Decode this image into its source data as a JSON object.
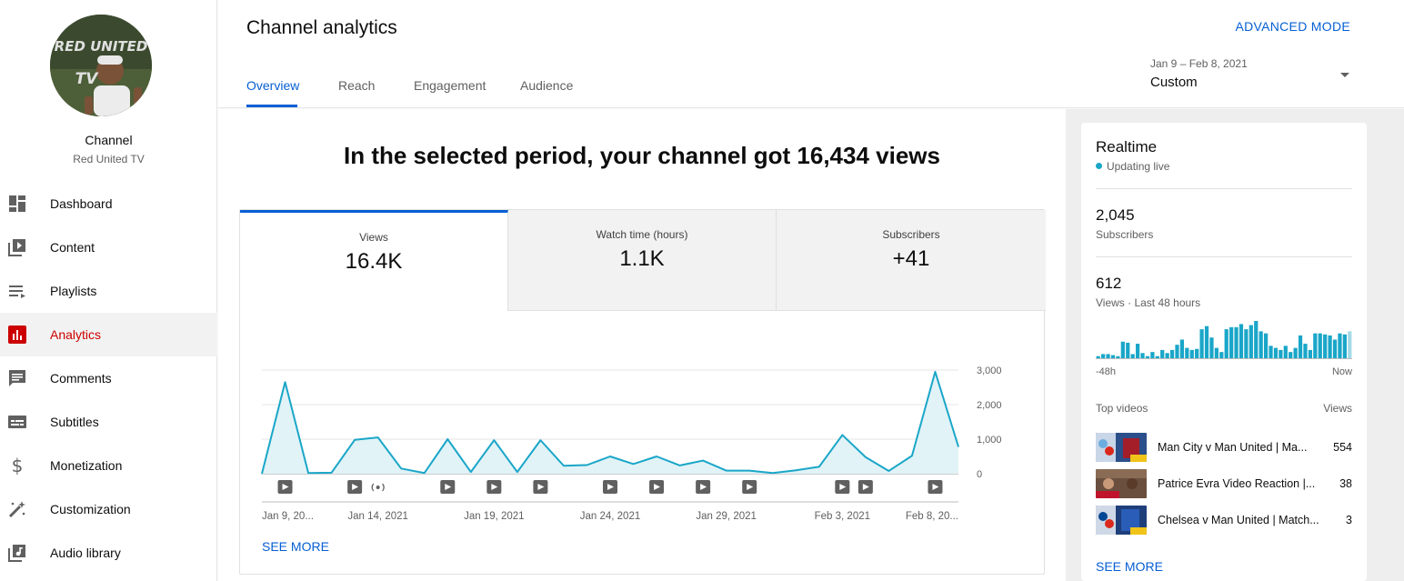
{
  "colors": {
    "accent": "#065fd4",
    "active_nav": "#cc0000",
    "chart_line": "#1aa6c8",
    "chart_fill": "#e1f3f7"
  },
  "sidebar": {
    "avatar_text": "RED UNITED TV",
    "channel_label": "Channel",
    "channel_name": "Red United TV",
    "items": [
      {
        "label": "Dashboard",
        "icon": "dashboard-icon"
      },
      {
        "label": "Content",
        "icon": "video-library-icon"
      },
      {
        "label": "Playlists",
        "icon": "playlist-icon"
      },
      {
        "label": "Analytics",
        "icon": "analytics-icon",
        "active": true
      },
      {
        "label": "Comments",
        "icon": "comments-icon"
      },
      {
        "label": "Subtitles",
        "icon": "subtitles-icon"
      },
      {
        "label": "Monetization",
        "icon": "dollar-icon"
      },
      {
        "label": "Customization",
        "icon": "magic-wand-icon"
      },
      {
        "label": "Audio library",
        "icon": "audio-library-icon"
      }
    ]
  },
  "header": {
    "title": "Channel analytics",
    "advanced_mode": "ADVANCED MODE",
    "tabs": [
      "Overview",
      "Reach",
      "Engagement",
      "Audience"
    ],
    "active_tab": "Overview",
    "date_range": "Jan 9 – Feb 8, 2021",
    "date_preset": "Custom"
  },
  "main": {
    "headline": "In the selected period, your channel got 16,434 views",
    "metrics": [
      {
        "label": "Views",
        "value": "16.4K",
        "active": true
      },
      {
        "label": "Watch time (hours)",
        "value": "1.1K"
      },
      {
        "label": "Subscribers",
        "value": "+41"
      }
    ],
    "see_more": "SEE MORE"
  },
  "chart_data": {
    "type": "area",
    "series": [
      {
        "values": [
          0,
          2650,
          20,
          30,
          980,
          1050,
          150,
          20,
          1000,
          50,
          970,
          50,
          970,
          230,
          250,
          500,
          280,
          500,
          240,
          380,
          90,
          90,
          20,
          100,
          200,
          1120,
          480,
          80,
          520,
          2950,
          780
        ]
      }
    ],
    "ylim": [
      0,
      3000
    ],
    "yticks": [
      "3,000",
      "2,000",
      "1,000",
      "0"
    ],
    "xtick_labels": [
      "Jan 9, 20...",
      "Jan 14, 2021",
      "Jan 19, 2021",
      "Jan 24, 2021",
      "Jan 29, 2021",
      "Feb 3, 2021",
      "Feb 8, 20..."
    ],
    "xtick_days": [
      0,
      5,
      10,
      15,
      20,
      25,
      30
    ],
    "video_markers": [
      1,
      4,
      8,
      10,
      12,
      15,
      17,
      19,
      21,
      25,
      26,
      29
    ],
    "live_markers": [
      5
    ],
    "grid": true
  },
  "realtime": {
    "title": "Realtime",
    "status": "Updating live",
    "subscribers_value": "2,045",
    "subscribers_label": "Subscribers",
    "views_value": "612",
    "views_label": "Views · Last 48 hours",
    "start_label": "-48h",
    "end_label": "Now",
    "hourly_views": [
      2,
      4,
      4,
      3,
      2,
      16,
      15,
      4,
      14,
      5,
      2,
      6,
      2,
      8,
      5,
      8,
      13,
      18,
      10,
      8,
      9,
      28,
      31,
      20,
      10,
      6,
      28,
      30,
      30,
      33,
      28,
      32,
      36,
      26,
      24,
      12,
      10,
      8,
      12,
      6,
      10,
      22,
      14,
      8,
      24,
      24,
      23,
      22,
      18,
      24,
      23,
      26
    ],
    "top_videos_label": "Top videos",
    "views_col_label": "Views",
    "top_videos": [
      {
        "title": "Man City v Man United | Ma...",
        "views": "554"
      },
      {
        "title": "Patrice Evra Video Reaction |...",
        "views": "38"
      },
      {
        "title": "Chelsea v Man United | Match...",
        "views": "3"
      }
    ],
    "see_more": "SEE MORE"
  }
}
